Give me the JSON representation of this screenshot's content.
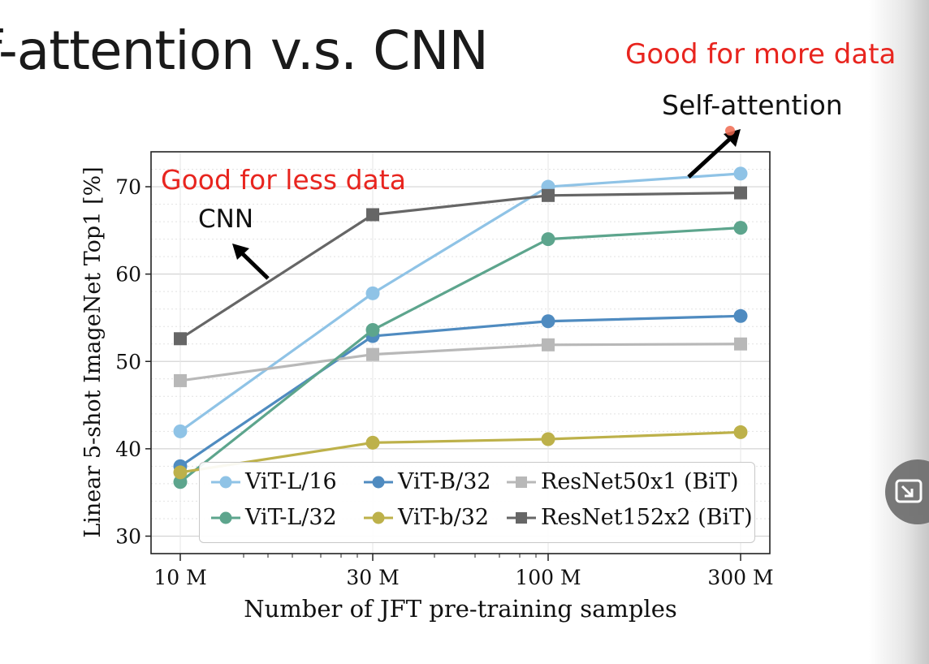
{
  "slide": {
    "title": "lf-attention v.s. CNN"
  },
  "annotations": {
    "more_data": "Good for more data",
    "self_attention": "Self-attention",
    "less_data": "Good for less data",
    "cnn": "CNN"
  },
  "colors": {
    "annotation_red": "#e8251f",
    "vit_l16": "#8fc3e6",
    "vit_b32": "#4f8bc0",
    "resnet50": "#b8b8b8",
    "vit_l32": "#5da58d",
    "vit_b32_small": "#bdb14a",
    "resnet152": "#666666"
  },
  "chart_data": {
    "type": "line",
    "xlabel": "Number of JFT pre-training samples",
    "ylabel": "Linear 5-shot ImageNet Top1 [%]",
    "x": [
      "10 M",
      "30 M",
      "100 M",
      "300 M"
    ],
    "x_scale": "log",
    "ylim": [
      28,
      74
    ],
    "yticks": [
      "30",
      "40",
      "50",
      "60",
      "70"
    ],
    "grid": true,
    "legend_position": "bottom-right",
    "series": [
      {
        "name": "ViT-L/16",
        "color": "#8fc3e6",
        "marker": "circle",
        "values": [
          42,
          57.8,
          70,
          71.5
        ]
      },
      {
        "name": "ViT-B/32",
        "color": "#4f8bc0",
        "marker": "circle",
        "values": [
          38,
          52.9,
          54.6,
          55.2
        ]
      },
      {
        "name": "ResNet50x1 (BiT)",
        "color": "#b8b8b8",
        "marker": "square",
        "values": [
          47.8,
          50.8,
          51.9,
          52
        ]
      },
      {
        "name": "ViT-L/32",
        "color": "#5da58d",
        "marker": "circle",
        "values": [
          36.2,
          53.6,
          64,
          65.3
        ]
      },
      {
        "name": "ViT-b/32",
        "color": "#bdb14a",
        "marker": "circle",
        "values": [
          37.3,
          40.7,
          41.1,
          41.9
        ]
      },
      {
        "name": "ResNet152x2 (BiT)",
        "color": "#666666",
        "marker": "square",
        "values": [
          52.6,
          66.8,
          69,
          69.3
        ]
      }
    ]
  }
}
